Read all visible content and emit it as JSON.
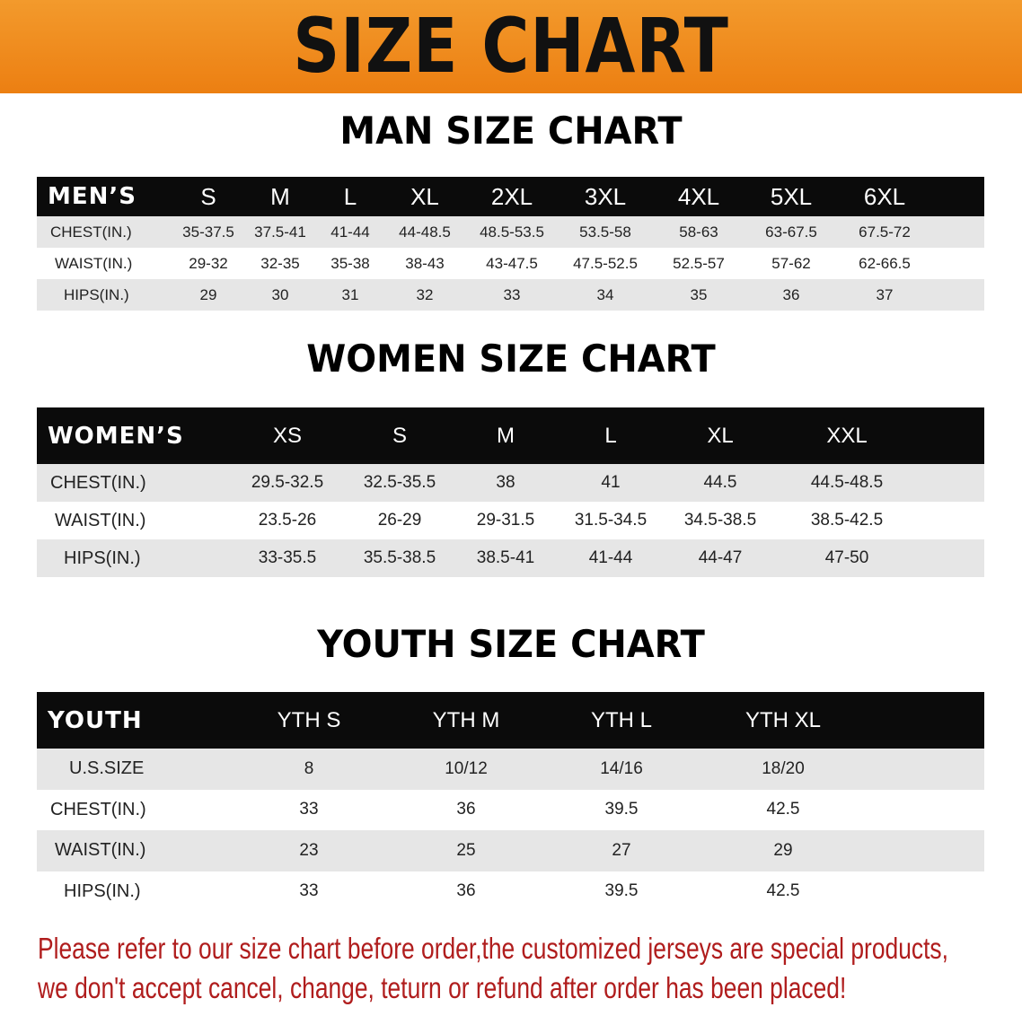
{
  "banner": {
    "title": "SIZE CHART",
    "color": "#ee8a1e"
  },
  "men": {
    "heading": "MAN SIZE CHART",
    "header_label": "MEN’S",
    "sizes": [
      "S",
      "M",
      "L",
      "XL",
      "2XL",
      "3XL",
      "4XL",
      "5XL",
      "6XL"
    ],
    "rows": [
      {
        "label": "CHEST(IN.)",
        "values": [
          "35-37.5",
          "37.5-41",
          "41-44",
          "44-48.5",
          "48.5-53.5",
          "53.5-58",
          "58-63",
          "63-67.5",
          "67.5-72"
        ]
      },
      {
        "label": "WAIST(IN.)",
        "values": [
          "29-32",
          "32-35",
          "35-38",
          "38-43",
          "43-47.5",
          "47.5-52.5",
          "52.5-57",
          "57-62",
          "62-66.5"
        ]
      },
      {
        "label": "HIPS(IN.)",
        "values": [
          "29",
          "30",
          "31",
          "32",
          "33",
          "34",
          "35",
          "36",
          "37"
        ]
      }
    ]
  },
  "women": {
    "heading": "WOMEN SIZE CHART",
    "header_label": "WOMEN’S",
    "sizes": [
      "XS",
      "S",
      "M",
      "L",
      "XL",
      "XXL"
    ],
    "rows": [
      {
        "label": "CHEST(IN.)",
        "values": [
          "29.5-32.5",
          "32.5-35.5",
          "38",
          "41",
          "44.5",
          "44.5-48.5"
        ]
      },
      {
        "label": "WAIST(IN.)",
        "values": [
          "23.5-26",
          "26-29",
          "29-31.5",
          "31.5-34.5",
          "34.5-38.5",
          "38.5-42.5"
        ]
      },
      {
        "label": "HIPS(IN.)",
        "values": [
          "33-35.5",
          "35.5-38.5",
          "38.5-41",
          "41-44",
          "44-47",
          "47-50"
        ]
      }
    ]
  },
  "youth": {
    "heading": "YOUTH SIZE CHART",
    "header_label": "YOUTH",
    "sizes": [
      "YTH S",
      "YTH M",
      "YTH L",
      "YTH XL"
    ],
    "rows": [
      {
        "label": "U.S.SIZE",
        "values": [
          "8",
          "10/12",
          "14/16",
          "18/20"
        ]
      },
      {
        "label": "CHEST(IN.)",
        "values": [
          "33",
          "36",
          "39.5",
          "42.5"
        ]
      },
      {
        "label": "WAIST(IN.)",
        "values": [
          "23",
          "25",
          "27",
          "29"
        ]
      },
      {
        "label": "HIPS(IN.)",
        "values": [
          "33",
          "36",
          "39.5",
          "42.5"
        ]
      }
    ]
  },
  "notice": {
    "line1": "Please refer to our size chart before order,the customized jerseys are special products,",
    "line2": "we don't accept cancel, change, teturn or refund after order has been placed!",
    "color": "#b01d1d"
  }
}
